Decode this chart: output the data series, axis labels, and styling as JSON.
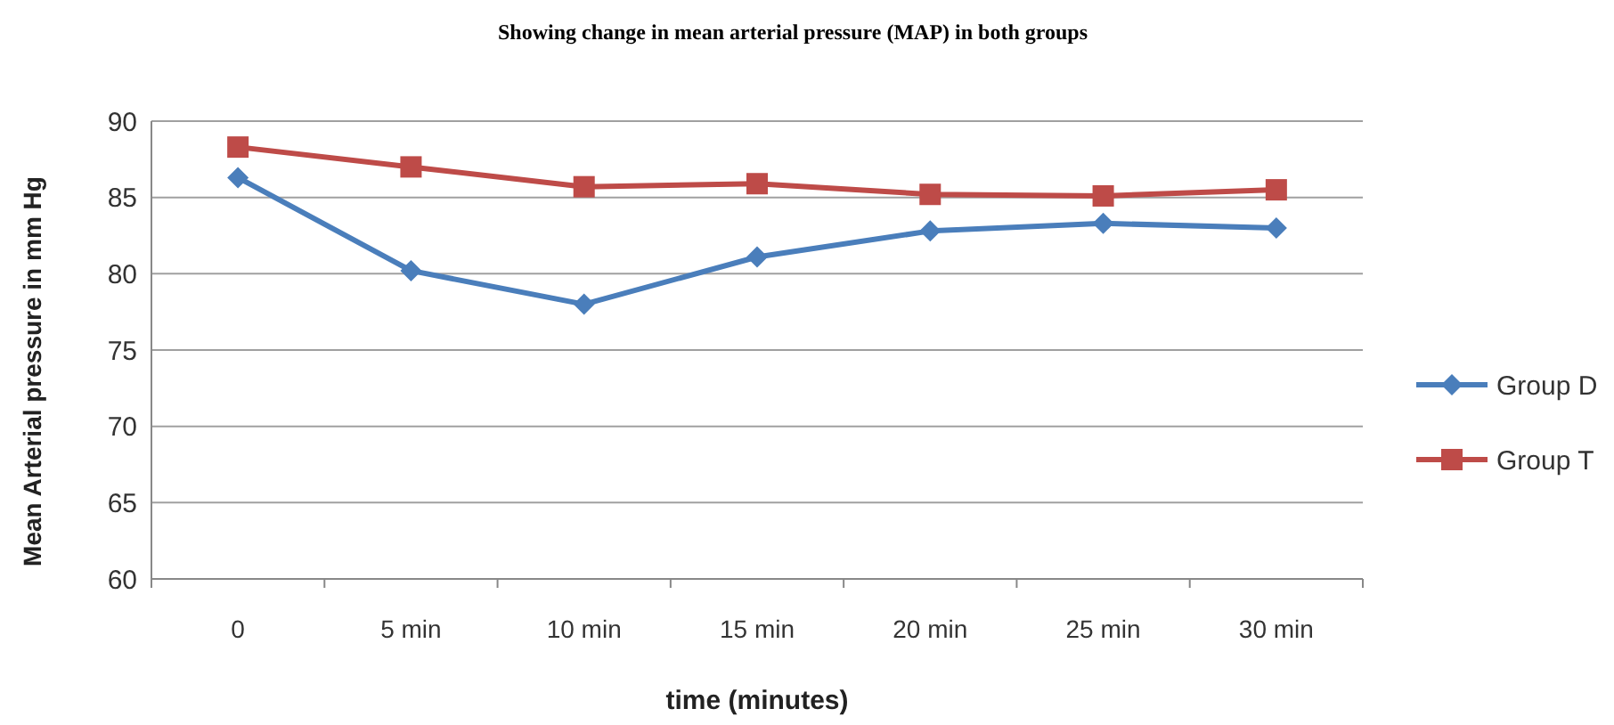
{
  "chart_data": {
    "type": "line",
    "title": "Showing change in mean arterial pressure (MAP) in both groups",
    "xlabel": "time (minutes)",
    "ylabel": "Mean Arterial pressure in mm Hg",
    "categories": [
      "0",
      "5 min",
      "10 min",
      "15 min",
      "20 min",
      "25 min",
      "30 min"
    ],
    "series": [
      {
        "name": "Group D",
        "color": "#4a7ebb",
        "marker": "diamond",
        "values": [
          86.3,
          80.2,
          78,
          81.1,
          82.8,
          83.3,
          83
        ]
      },
      {
        "name": "Group T",
        "color": "#be4b48",
        "marker": "square",
        "values": [
          88.3,
          87,
          85.7,
          85.9,
          85.2,
          85.1,
          85.5
        ]
      }
    ],
    "ylim": [
      60,
      90
    ],
    "yticks": [
      60,
      65,
      70,
      75,
      80,
      85,
      90
    ],
    "grid": "y",
    "legend": "right"
  }
}
